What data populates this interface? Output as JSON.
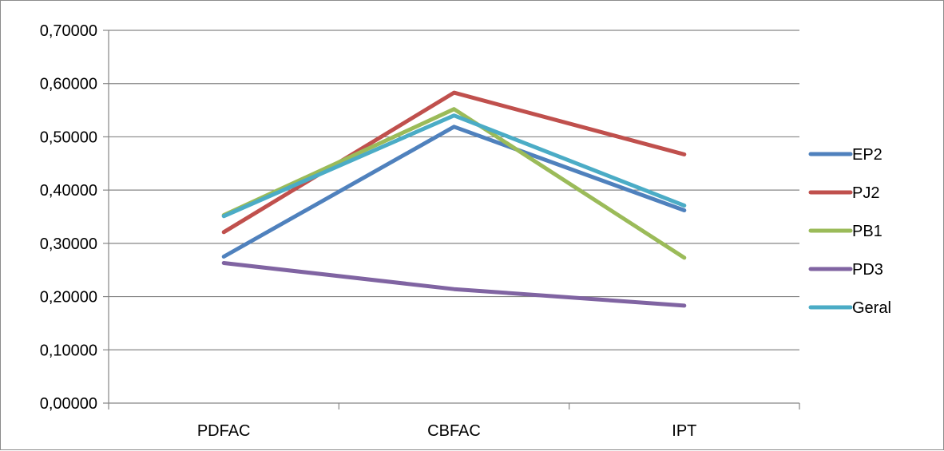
{
  "chart_data": {
    "type": "line",
    "title": "",
    "xlabel": "",
    "ylabel": "",
    "categories": [
      "PDFAC",
      "CBFAC",
      "IPT"
    ],
    "ylim": [
      0,
      0.7
    ],
    "yticks": [
      "0,00000",
      "0,10000",
      "0,20000",
      "0,30000",
      "0,40000",
      "0,50000",
      "0,60000",
      "0,70000"
    ],
    "grid": true,
    "legend_position": "right",
    "series": [
      {
        "name": "EP2",
        "color": "#4f81bd",
        "values": [
          0.275,
          0.519,
          0.362
        ]
      },
      {
        "name": "PJ2",
        "color": "#c0504d",
        "values": [
          0.321,
          0.583,
          0.467
        ]
      },
      {
        "name": "PB1",
        "color": "#9bbb59",
        "values": [
          0.353,
          0.552,
          0.273
        ]
      },
      {
        "name": "PD3",
        "color": "#8064a2",
        "values": [
          0.263,
          0.214,
          0.183
        ]
      },
      {
        "name": "Geral",
        "color": "#4bacc6",
        "values": [
          0.351,
          0.54,
          0.371
        ]
      }
    ]
  }
}
